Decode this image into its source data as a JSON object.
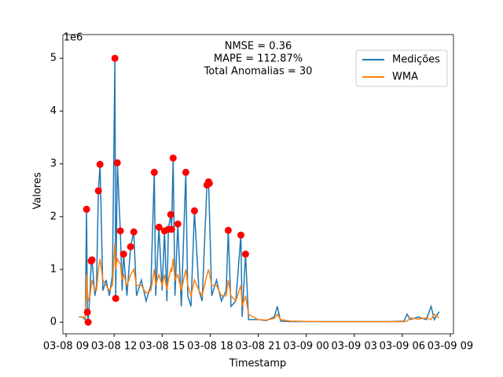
{
  "chart_data": {
    "type": "line",
    "xlabel": "Timestamp",
    "ylabel": "Valores",
    "y_offset_label": "1e6",
    "annotations": [
      "NMSE = 0.36",
      "MAPE = 112.87%",
      "Total Anomalias = 30"
    ],
    "legend": "upper right",
    "xlim": [
      -0.2,
      24.2
    ],
    "xticks": [
      {
        "value": 0,
        "label": "03-08 09"
      },
      {
        "value": 3,
        "label": "03-08 12"
      },
      {
        "value": 6,
        "label": "03-08 15"
      },
      {
        "value": 9,
        "label": "03-08 18"
      },
      {
        "value": 12,
        "label": "03-08 21"
      },
      {
        "value": 15,
        "label": "03-09 00"
      },
      {
        "value": 18,
        "label": "03-09 03"
      },
      {
        "value": 21,
        "label": "03-09 06"
      },
      {
        "value": 24,
        "label": "03-09 09"
      }
    ],
    "ylim": [
      -0.22,
      5.45
    ],
    "yticks": [
      0,
      1,
      2,
      3,
      4,
      5
    ],
    "x": [
      0.8,
      1.0,
      1.2,
      1.28,
      1.33,
      1.38,
      1.5,
      1.57,
      1.62,
      1.8,
      1.9,
      2.02,
      2.12,
      2.3,
      2.5,
      2.7,
      2.9,
      3.05,
      3.1,
      3.2,
      3.39,
      3.5,
      3.59,
      3.8,
      4.03,
      4.23,
      4.4,
      4.7,
      5.0,
      5.3,
      5.51,
      5.6,
      5.8,
      6.0,
      6.15,
      6.3,
      6.39,
      6.54,
      6.59,
      6.69,
      6.8,
      6.98,
      7.2,
      7.48,
      7.6,
      7.8,
      8.02,
      8.3,
      8.5,
      8.8,
      8.9,
      9.1,
      9.4,
      9.7,
      10.0,
      10.13,
      10.3,
      10.6,
      10.92,
      11.0,
      11.21,
      11.4,
      12,
      12.5,
      13,
      13.2,
      13.4,
      14,
      16,
      18,
      20,
      21.1,
      21.3,
      21.5,
      22,
      22.5,
      22.8,
      23.0,
      23.3
    ],
    "series": [
      {
        "name": "Medições",
        "color": "#1f77b4",
        "values": [
          0.1,
          0.1,
          0.05,
          2.14,
          0.19,
          0.0,
          0.6,
          1.16,
          1.18,
          0.5,
          0.7,
          2.49,
          2.99,
          0.6,
          0.8,
          0.5,
          0.9,
          5.0,
          0.45,
          3.02,
          1.73,
          0.6,
          1.29,
          0.5,
          1.43,
          1.71,
          0.5,
          0.8,
          0.4,
          0.7,
          2.84,
          0.5,
          1.8,
          0.6,
          1.73,
          0.4,
          1.76,
          2.04,
          1.76,
          3.11,
          0.5,
          1.86,
          0.3,
          2.84,
          0.5,
          0.3,
          2.11,
          0.6,
          0.4,
          2.6,
          2.66,
          0.5,
          0.8,
          0.4,
          0.6,
          1.74,
          0.3,
          0.4,
          1.65,
          0.1,
          1.29,
          0.05,
          0.05,
          0.03,
          0.1,
          0.3,
          0.02,
          0.01,
          0.01,
          0.01,
          0.01,
          0.02,
          0.15,
          0.05,
          0.1,
          0.05,
          0.3,
          0.05,
          0.2
        ]
      },
      {
        "name": "WMA",
        "color": "#ff7f0e",
        "values": [
          0.1,
          0.1,
          0.08,
          0.9,
          0.6,
          0.4,
          0.5,
          0.7,
          0.8,
          0.6,
          0.6,
          1.0,
          1.2,
          0.8,
          0.7,
          0.6,
          0.7,
          1.5,
          1.0,
          1.2,
          1.1,
          0.8,
          0.9,
          0.7,
          0.9,
          1.0,
          0.7,
          0.7,
          0.55,
          0.6,
          1.0,
          0.7,
          0.9,
          0.7,
          0.9,
          0.6,
          0.8,
          1.0,
          0.95,
          1.2,
          0.8,
          0.9,
          0.6,
          1.0,
          0.7,
          0.5,
          0.8,
          0.6,
          0.5,
          0.9,
          1.0,
          0.7,
          0.7,
          0.5,
          0.5,
          0.8,
          0.5,
          0.4,
          0.7,
          0.3,
          0.5,
          0.15,
          0.05,
          0.04,
          0.07,
          0.15,
          0.05,
          0.02,
          0.01,
          0.01,
          0.01,
          0.01,
          0.02,
          0.08,
          0.06,
          0.08,
          0.05,
          0.15,
          0.08
        ]
      }
    ],
    "anomalies": {
      "color": "#ff0000",
      "x": [
        1.28,
        1.33,
        1.38,
        1.57,
        1.62,
        2.02,
        2.12,
        3.05,
        3.1,
        3.2,
        3.39,
        3.59,
        4.03,
        4.23,
        5.51,
        5.8,
        6.15,
        6.39,
        6.54,
        6.59,
        6.69,
        6.98,
        7.48,
        8.02,
        8.8,
        8.9,
        8.95,
        10.13,
        10.92,
        11.21
      ],
      "values": [
        2.14,
        0.19,
        0.0,
        1.16,
        1.18,
        2.49,
        2.99,
        5.0,
        0.45,
        3.02,
        1.73,
        1.29,
        1.43,
        1.71,
        2.84,
        1.8,
        1.73,
        1.76,
        2.04,
        1.76,
        3.11,
        1.86,
        2.84,
        2.11,
        2.6,
        2.66,
        2.63,
        1.74,
        1.65,
        1.29
      ]
    }
  }
}
